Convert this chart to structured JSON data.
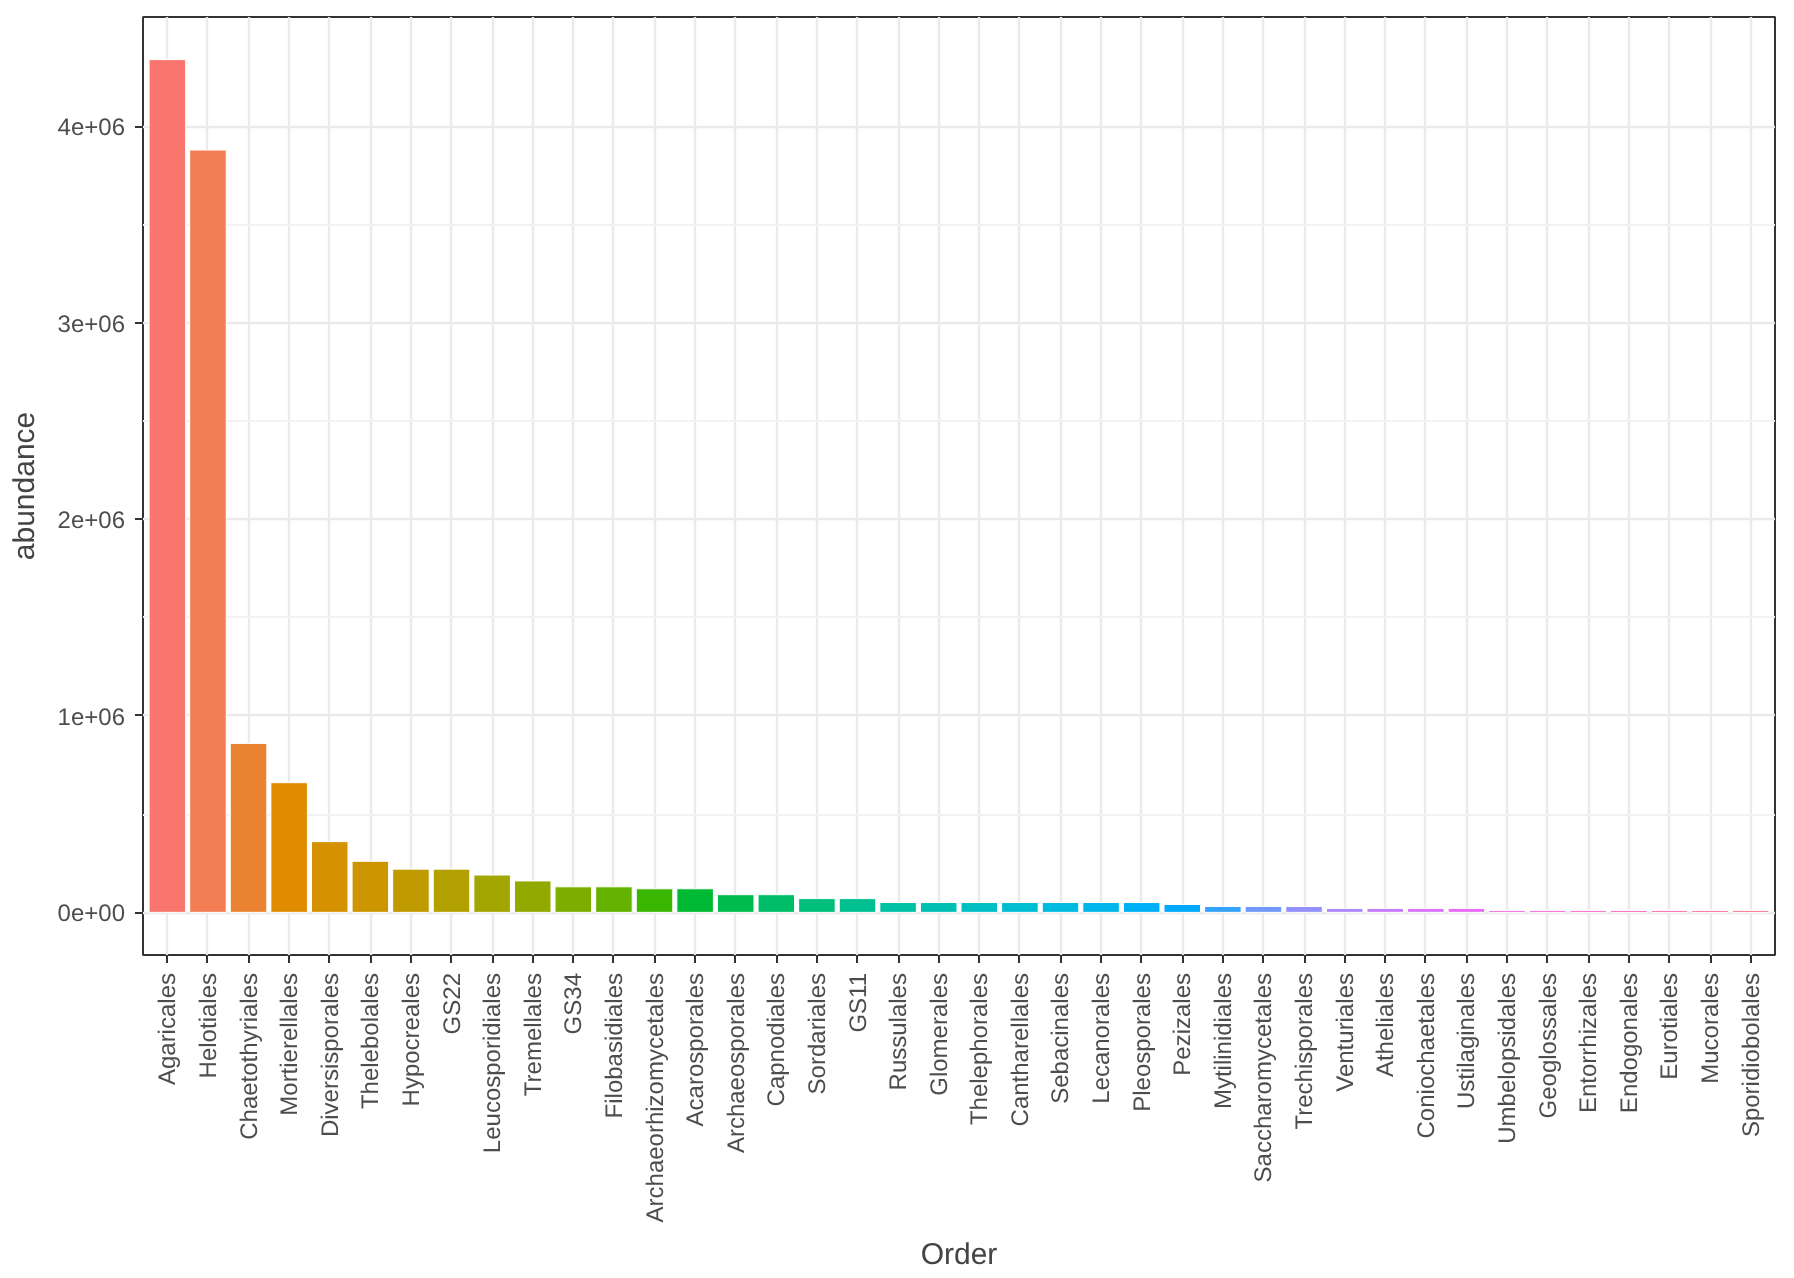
{
  "chart_data": {
    "type": "bar",
    "xlabel": "Order",
    "ylabel": "abundance",
    "categories": [
      "Agaricales",
      "Helotiales",
      "Chaetothyriales",
      "Mortierellales",
      "Diversisporales",
      "Thelebolales",
      "Hypocreales",
      "GS22",
      "Leucosporidiales",
      "Tremellales",
      "GS34",
      "Filobasidiales",
      "Archaeorhizomycetales",
      "Acarosporales",
      "Archaeosporales",
      "Capnodiales",
      "Sordariales",
      "GS11",
      "Russulales",
      "Glomerales",
      "Thelephorales",
      "Cantharellales",
      "Sebacinales",
      "Lecanorales",
      "Pleosporales",
      "Pezizales",
      "Mytilinidiales",
      "Saccharomycetales",
      "Trechisporales",
      "Venturiales",
      "Atheliales",
      "Coniochaetales",
      "Ustilaginales",
      "Umbelopsidales",
      "Geoglossales",
      "Entorrhizales",
      "Endogonales",
      "Eurotiales",
      "Mucorales",
      "Sporidiobolales"
    ],
    "values": [
      4340000,
      3880000,
      860000,
      660000,
      360000,
      260000,
      220000,
      220000,
      190000,
      160000,
      130000,
      130000,
      120000,
      120000,
      90000,
      90000,
      70000,
      70000,
      50000,
      50000,
      50000,
      50000,
      50000,
      50000,
      50000,
      40000,
      30000,
      30000,
      30000,
      20000,
      20000,
      20000,
      20000,
      10000,
      10000,
      10000,
      10000,
      10000,
      10000,
      10000
    ],
    "colors": [
      "#F8766D",
      "#F27D53",
      "#EA8331",
      "#E08B00",
      "#D69100",
      "#CD9600",
      "#C09B00",
      "#B2A000",
      "#A3A500",
      "#92A900",
      "#7CAE00",
      "#64B200",
      "#39B600",
      "#00B935",
      "#00BB4E",
      "#00BE67",
      "#00BF7D",
      "#00C091",
      "#00C1A3",
      "#00C0B5",
      "#00BFC4",
      "#00BDD2",
      "#00BADF",
      "#00B6EB",
      "#00B0F6",
      "#00A9FF",
      "#35A2FF",
      "#7099FF",
      "#9590FF",
      "#AF87FF",
      "#C77CFF",
      "#DB72FB",
      "#E76BF3",
      "#F265E7",
      "#FA62DB",
      "#FF61CC",
      "#FF62BC",
      "#FF64AB",
      "#FF6899",
      "#FC6F85"
    ],
    "ylim": [
      -217000,
      4557000
    ],
    "yticks": [
      {
        "value": 0,
        "label": "0e+00"
      },
      {
        "value": 1000000,
        "label": "1e+06"
      },
      {
        "value": 2000000,
        "label": "2e+06"
      },
      {
        "value": 3000000,
        "label": "3e+06"
      },
      {
        "value": 4000000,
        "label": "4e+06"
      }
    ],
    "grid": true
  }
}
